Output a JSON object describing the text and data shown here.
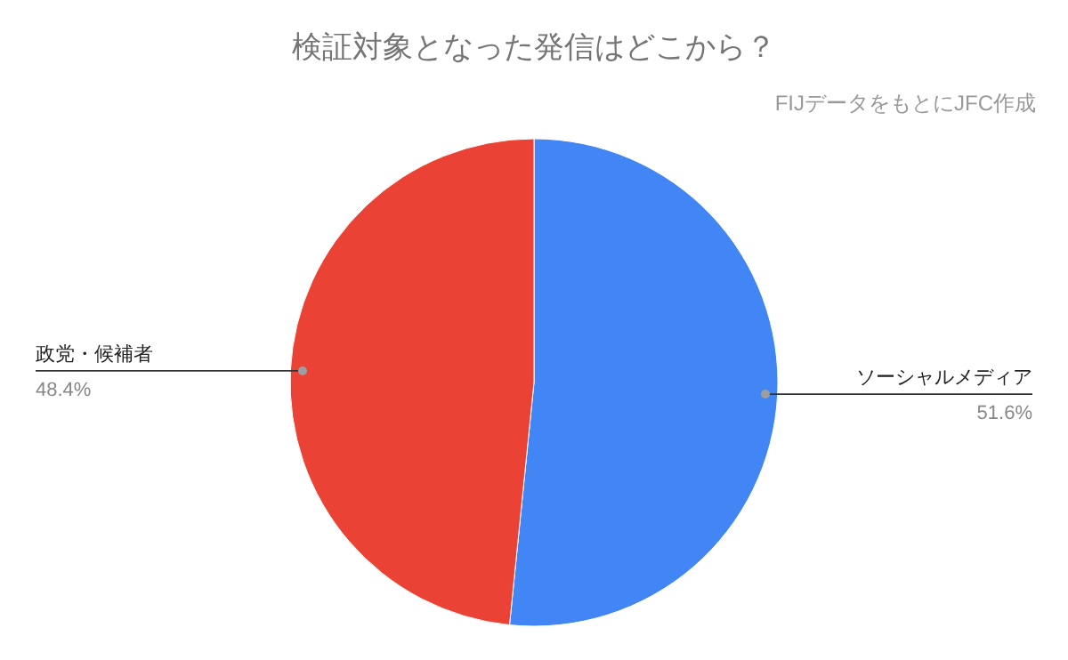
{
  "chart_data": {
    "type": "pie",
    "title": "検証対象となった発信はどこから？",
    "subtitle": "FIJデータをもとにJFC作成",
    "categories": [
      "ソーシャルメディア",
      "政党・候補者"
    ],
    "values": [
      51.6,
      48.4
    ],
    "colors": [
      "#4285f4",
      "#ea4335"
    ],
    "value_labels": [
      "51.6%",
      "48.4%"
    ]
  }
}
